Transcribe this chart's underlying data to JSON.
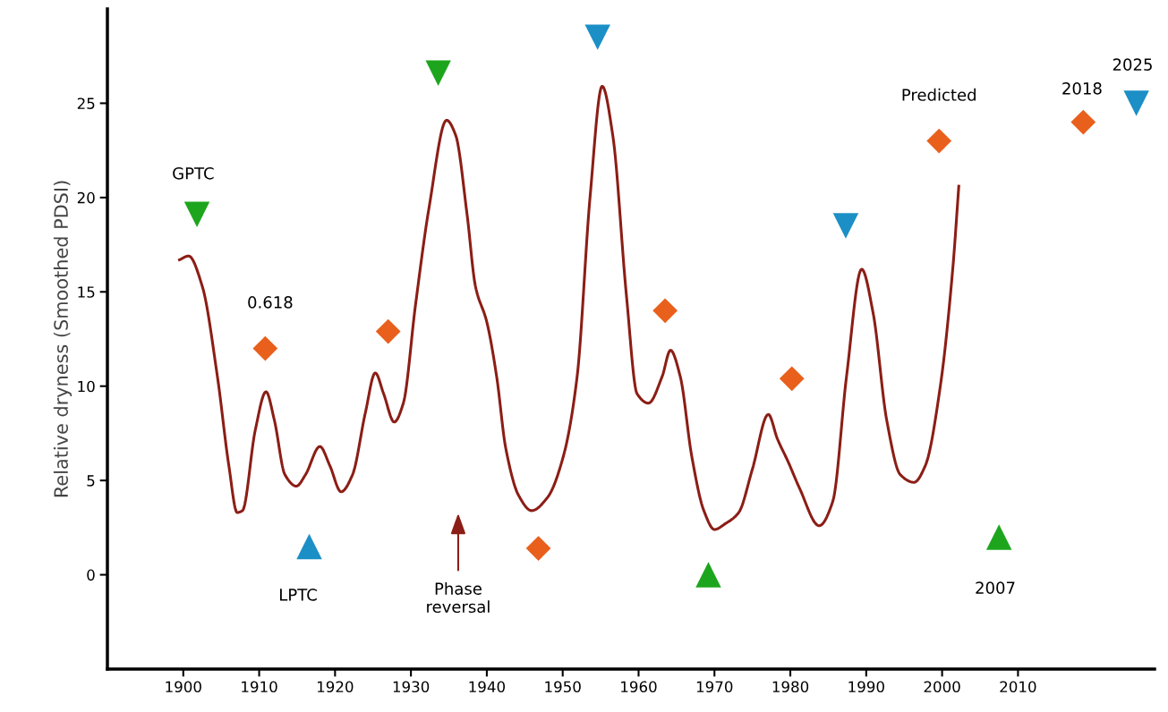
{
  "chart_data": {
    "type": "line",
    "ylabel": "Relative dryness (Smoothed PDSI)",
    "xlim": [
      1890,
      2028
    ],
    "ylim": [
      -5,
      30
    ],
    "xticks": [
      1900,
      1910,
      1920,
      1930,
      1940,
      1950,
      1960,
      1970,
      1980,
      1990,
      2000,
      2010
    ],
    "yticks": [
      0,
      5,
      10,
      15,
      20,
      25
    ],
    "grid": false,
    "legend": false,
    "series": [
      {
        "color": "#8b1e16",
        "marker": "none",
        "line_style": "solid",
        "x": [
          1899.5,
          1900.7,
          1902.5,
          1904.5,
          1906,
          1907.1,
          1907.8,
          1909.5,
          1910.9,
          1912,
          1913.4,
          1914.9,
          1916.1,
          1918,
          1919.3,
          1920.8,
          1922.3,
          1924,
          1925.3,
          1926.4,
          1927.8,
          1929,
          1930.6,
          1932.4,
          1934.7,
          1935.9,
          1937.4,
          1938.5,
          1940,
          1941.3,
          1942.5,
          1944.2,
          1945.9,
          1948,
          1950.1,
          1951.9,
          1953.6,
          1955.2,
          1956.6,
          1958.4,
          1959.8,
          1961.3,
          1963.1,
          1964.2,
          1965.5,
          1967,
          1968.6,
          1970,
          1971.4,
          1973.2,
          1975,
          1977.1,
          1978.3,
          1979.7,
          1981.2,
          1983.8,
          1985.6,
          1987.4,
          1989.4,
          1990.9,
          1992.7,
          1994.5,
          1996.3,
          1997.8,
          1999.8,
          2001.4,
          2002.2
        ],
        "values": [
          16.7,
          16.9,
          15.3,
          10.5,
          5.8,
          3.3,
          3.4,
          7.7,
          9.7,
          8.2,
          5.3,
          4.7,
          5.3,
          6.8,
          5.8,
          4.4,
          5.3,
          8.6,
          10.7,
          9.6,
          8.1,
          9.1,
          14.3,
          19.5,
          24.1,
          23.3,
          19.1,
          15.3,
          13.4,
          10.5,
          6.7,
          4.2,
          3.4,
          4.1,
          6.3,
          10.5,
          20,
          25.9,
          23.3,
          14.8,
          9.6,
          9.1,
          10.5,
          11.9,
          10.5,
          6.3,
          3.4,
          2.4,
          2.7,
          3.3,
          5.6,
          8.5,
          7.2,
          6.0,
          4.6,
          2.6,
          3.9,
          10.5,
          16.2,
          13.9,
          8.2,
          5.3,
          4.9,
          5.8,
          10.1,
          16.2,
          20.6
        ]
      },
      {
        "type": "scatter",
        "color": "#e8601c",
        "marker": "diamond",
        "x": [
          1910.8,
          1927,
          1946.8,
          1963.5,
          1980.2,
          1999.6,
          2018.6
        ],
        "values": [
          12.0,
          12.9,
          1.4,
          14.0,
          10.4,
          23.0,
          24.0
        ]
      },
      {
        "type": "scatter",
        "color": "#1ea51e",
        "marker": "triangle_down",
        "x": [
          1901.8,
          1933.6
        ],
        "values": [
          19.1,
          26.6
        ]
      },
      {
        "type": "scatter",
        "color": "#1ea51e",
        "marker": "triangle",
        "x": [
          1969.2,
          2007.5
        ],
        "values": [
          0.0,
          2.0
        ]
      },
      {
        "type": "scatter",
        "color": "#1b8fc6",
        "marker": "triangle_down",
        "x": [
          1954.6,
          1987.3,
          2025.6
        ],
        "values": [
          28.5,
          18.5,
          25.0
        ]
      },
      {
        "type": "scatter",
        "color": "#1b8fc6",
        "marker": "triangle",
        "x": [
          1916.6
        ],
        "values": [
          1.5
        ]
      }
    ],
    "annotations": [
      {
        "text": "GPTC",
        "x": 1901.8,
        "y": 19.1
      },
      {
        "text": "0.618",
        "x": 1910.8,
        "y": 12.0
      },
      {
        "text": "LPTC",
        "x": 1916.6,
        "y": 1.5
      },
      "Phase\nreversal",
      {
        "text": "Predicted",
        "x": 1999.6,
        "y": 23.0
      },
      {
        "text": "2007",
        "x": 2007.5,
        "y": 2.0
      },
      {
        "text": "2018",
        "x": 2018.6,
        "y": 24.0
      },
      {
        "text": "2025",
        "x": 2025.6,
        "y": 25.0
      }
    ]
  }
}
